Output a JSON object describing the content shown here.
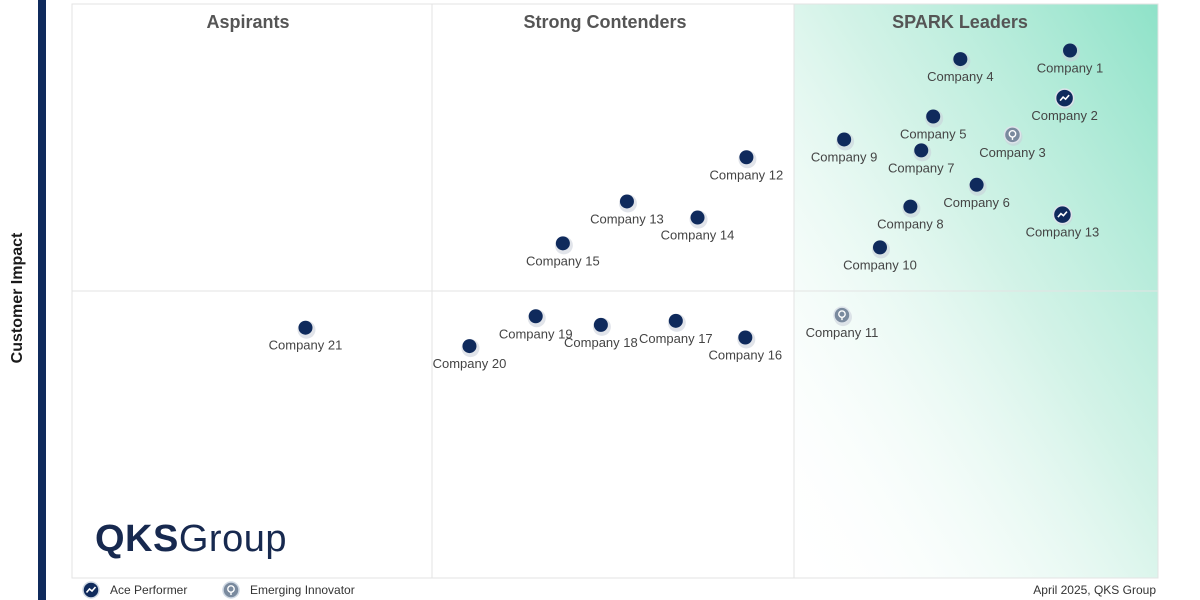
{
  "colors": {
    "point": "#0f2a5c",
    "emerging": "#7a8a9e",
    "leader_gradient": "#8ee2c8",
    "grid": "#e3e3e3",
    "quadrant_title": "#555555"
  },
  "footer": {
    "logo_bold": "QKS",
    "logo_rest": "Group",
    "legend_ace": "Ace Performer",
    "legend_innovator": "Emerging Innovator",
    "source": "April 2025, QKS Group"
  },
  "chart_data": {
    "type": "scatter",
    "ylabel": "Customer Impact",
    "xlabel": "",
    "xlim": [
      0,
      100
    ],
    "ylim": [
      0,
      100
    ],
    "grid": false,
    "quadrants": [
      {
        "label": "Aspirants",
        "x_range": [
          0,
          33.3
        ]
      },
      {
        "label": "Strong Contenders",
        "x_range": [
          33.3,
          66.6
        ]
      },
      {
        "label": "SPARK Leaders",
        "x_range": [
          66.6,
          100
        ]
      }
    ],
    "legend": [
      {
        "marker": "ace",
        "label": "Ace Performer"
      },
      {
        "marker": "innovator",
        "label": "Emerging Innovator"
      }
    ],
    "legend_position": "bottom-left",
    "points": [
      {
        "label": "Company 1",
        "x": 91.9,
        "y": 91.9,
        "marker": "normal"
      },
      {
        "label": "Company 2",
        "x": 91.4,
        "y": 83.6,
        "marker": "ace"
      },
      {
        "label": "Company 3",
        "x": 86.6,
        "y": 77.2,
        "marker": "innovator"
      },
      {
        "label": "Company 4",
        "x": 81.8,
        "y": 90.4,
        "marker": "normal"
      },
      {
        "label": "Company 5",
        "x": 79.3,
        "y": 80.4,
        "marker": "normal"
      },
      {
        "label": "Company 6",
        "x": 83.3,
        "y": 68.5,
        "marker": "normal"
      },
      {
        "label": "Company 7",
        "x": 78.2,
        "y": 74.5,
        "marker": "normal"
      },
      {
        "label": "Company 8",
        "x": 77.2,
        "y": 64.7,
        "marker": "normal"
      },
      {
        "label": "Company 9",
        "x": 71.1,
        "y": 76.4,
        "marker": "normal"
      },
      {
        "label": "Company 10",
        "x": 74.4,
        "y": 57.6,
        "marker": "normal"
      },
      {
        "label": "Company 11",
        "x": 70.9,
        "y": 45.8,
        "marker": "innovator"
      },
      {
        "label": "Company 12",
        "x": 62.1,
        "y": 73.3,
        "marker": "normal"
      },
      {
        "label": "Company 13",
        "x": 51.1,
        "y": 65.6,
        "marker": "normal"
      },
      {
        "label": "Company 13",
        "x": 91.2,
        "y": 63.3,
        "marker": "ace"
      },
      {
        "label": "Company 14",
        "x": 57.6,
        "y": 62.8,
        "marker": "normal"
      },
      {
        "label": "Company 15",
        "x": 45.2,
        "y": 58.3,
        "marker": "normal"
      },
      {
        "label": "Company 16",
        "x": 62.0,
        "y": 41.9,
        "marker": "normal"
      },
      {
        "label": "Company 17",
        "x": 55.6,
        "y": 44.8,
        "marker": "normal"
      },
      {
        "label": "Company 18",
        "x": 48.7,
        "y": 44.1,
        "marker": "normal"
      },
      {
        "label": "Company 19",
        "x": 42.7,
        "y": 45.6,
        "marker": "normal"
      },
      {
        "label": "Company 20",
        "x": 36.6,
        "y": 40.4,
        "marker": "normal"
      },
      {
        "label": "Company 21",
        "x": 21.5,
        "y": 43.6,
        "marker": "normal"
      }
    ]
  }
}
